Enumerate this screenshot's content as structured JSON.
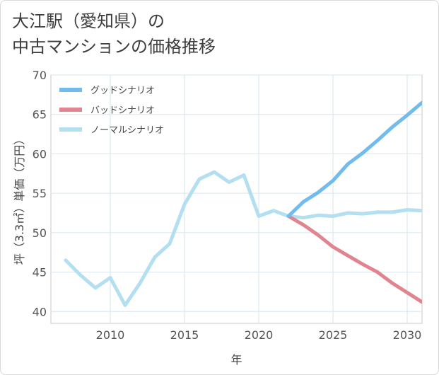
{
  "title": {
    "line1": "大江駅（愛知県）の",
    "line2": "中古マンションの価格推移"
  },
  "chart_data": {
    "type": "line",
    "xlabel": "年",
    "ylabel": "坪（3.3㎡）単価（万円）",
    "xlim": [
      2006,
      2031
    ],
    "ylim": [
      38.5,
      70
    ],
    "xticks": [
      2010,
      2015,
      2020,
      2025,
      2030
    ],
    "yticks": [
      40,
      45,
      50,
      55,
      60,
      65,
      70
    ],
    "grid": true,
    "legend_position": "top-left",
    "series": [
      {
        "name": "グッドシナリオ",
        "color": "#72bbef",
        "x": [
          2022,
          2023,
          2024,
          2025,
          2026,
          2027,
          2028,
          2029,
          2030,
          2031
        ],
        "y": [
          52.1,
          53.9,
          55.1,
          56.6,
          58.7,
          60.1,
          61.7,
          63.4,
          64.9,
          66.5
        ]
      },
      {
        "name": "バッドシナリオ",
        "color": "#e0858f",
        "x": [
          2022,
          2023,
          2024,
          2025,
          2026,
          2027,
          2028,
          2029,
          2030,
          2031
        ],
        "y": [
          52.1,
          51.0,
          49.7,
          48.2,
          47.1,
          46.0,
          45.0,
          43.6,
          42.4,
          41.2
        ]
      },
      {
        "name": "ノーマルシナリオ",
        "color": "#b3dff0",
        "x": [
          2007,
          2008,
          2009,
          2010,
          2011,
          2012,
          2013,
          2014,
          2015,
          2016,
          2017,
          2018,
          2019,
          2020,
          2021,
          2022,
          2023,
          2024,
          2025,
          2026,
          2027,
          2028,
          2029,
          2030,
          2031
        ],
        "y": [
          46.5,
          44.6,
          43.0,
          44.3,
          40.8,
          43.6,
          46.9,
          48.6,
          53.6,
          56.8,
          57.7,
          56.4,
          57.3,
          52.1,
          52.8,
          52.1,
          51.9,
          52.2,
          52.1,
          52.5,
          52.4,
          52.6,
          52.6,
          52.9,
          52.8
        ]
      }
    ]
  }
}
